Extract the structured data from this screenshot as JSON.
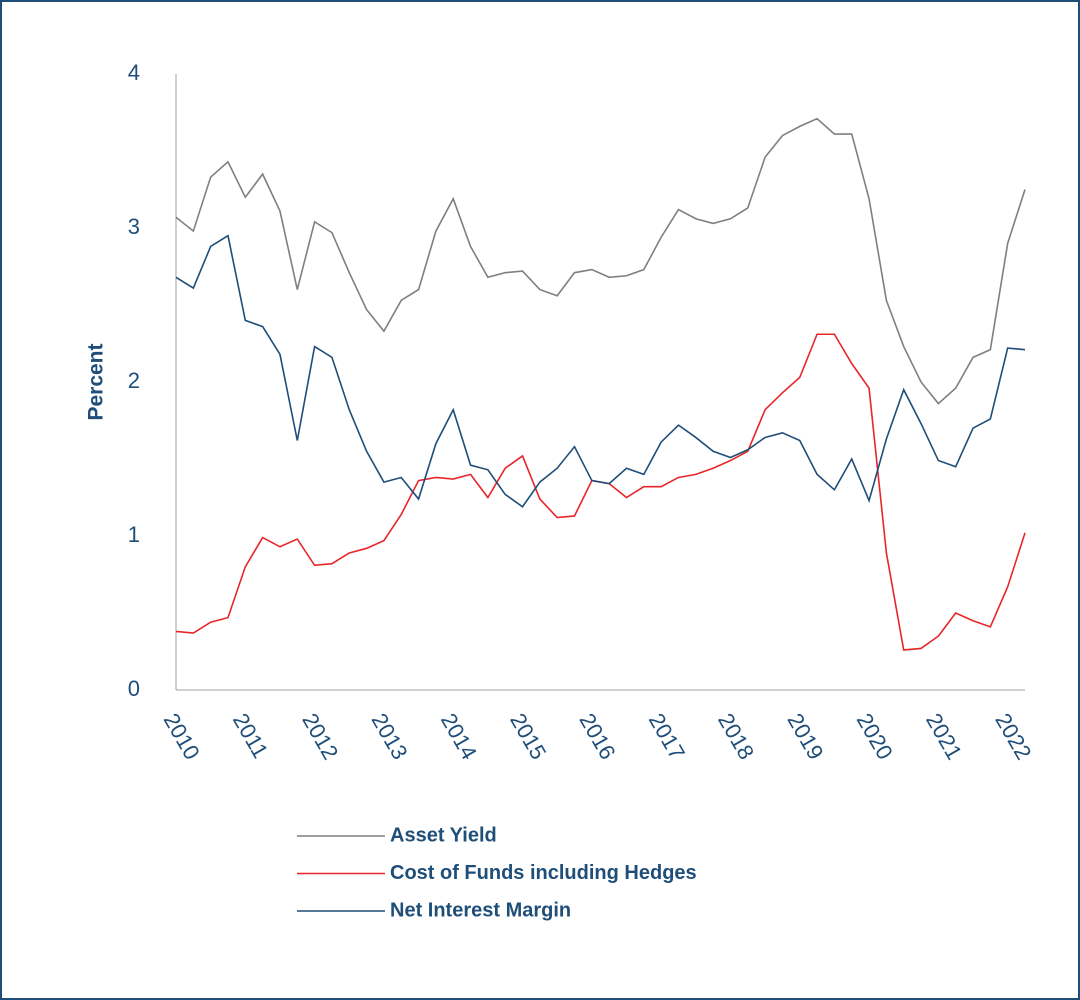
{
  "chart_data": {
    "type": "line",
    "ylabel": "Percent",
    "categories": [
      "2010",
      null,
      null,
      null,
      "2011",
      null,
      null,
      null,
      "2012",
      null,
      null,
      null,
      "2013",
      null,
      null,
      null,
      "2014",
      null,
      null,
      null,
      "2015",
      null,
      null,
      null,
      "2016",
      null,
      null,
      null,
      "2017",
      null,
      null,
      null,
      "2018",
      null,
      null,
      null,
      "2019",
      null,
      null,
      null,
      "2020",
      null,
      null,
      null,
      "2021",
      null,
      null,
      null,
      "2022",
      null
    ],
    "series": [
      {
        "name": "Asset Yield",
        "color": "#7f7f7f",
        "values": [
          3.07,
          2.98,
          3.33,
          3.43,
          3.2,
          3.35,
          3.11,
          2.6,
          3.04,
          2.97,
          2.71,
          2.47,
          2.33,
          2.53,
          2.6,
          2.98,
          3.19,
          2.88,
          2.68,
          2.71,
          2.72,
          2.6,
          2.56,
          2.71,
          2.73,
          2.68,
          2.69,
          2.73,
          2.94,
          3.12,
          3.06,
          3.03,
          3.06,
          3.13,
          3.46,
          3.6,
          3.66,
          3.71,
          3.61,
          3.61,
          3.19,
          2.53,
          2.23,
          2.0,
          1.86,
          1.96,
          2.16,
          2.21,
          2.9,
          3.25
        ]
      },
      {
        "name": "Cost of Funds including Hedges",
        "color": "#e8262a",
        "values": [
          0.38,
          0.37,
          0.44,
          0.47,
          0.8,
          0.99,
          0.93,
          0.98,
          0.81,
          0.82,
          0.89,
          0.92,
          0.97,
          1.14,
          1.36,
          1.38,
          1.37,
          1.4,
          1.25,
          1.44,
          1.52,
          1.24,
          1.12,
          1.13,
          1.36,
          1.34,
          1.25,
          1.32,
          1.32,
          1.38,
          1.4,
          1.44,
          1.49,
          1.55,
          1.82,
          1.93,
          2.03,
          2.31,
          2.31,
          2.12,
          1.96,
          0.89,
          0.26,
          0.27,
          0.35,
          0.5,
          0.45,
          0.41,
          0.67,
          1.02
        ]
      },
      {
        "name": "Net Interest Margin",
        "color": "#1f4e79",
        "values": [
          2.68,
          2.61,
          2.88,
          2.95,
          2.4,
          2.36,
          2.18,
          1.62,
          2.23,
          2.16,
          1.82,
          1.55,
          1.35,
          1.38,
          1.24,
          1.6,
          1.82,
          1.46,
          1.43,
          1.27,
          1.19,
          1.35,
          1.44,
          1.58,
          1.36,
          1.34,
          1.44,
          1.4,
          1.61,
          1.72,
          1.64,
          1.55,
          1.51,
          1.56,
          1.64,
          1.67,
          1.62,
          1.4,
          1.3,
          1.5,
          1.23,
          1.63,
          1.95,
          1.73,
          1.49,
          1.45,
          1.7,
          1.76,
          2.22,
          2.21
        ]
      }
    ],
    "ylim": [
      0,
      4
    ],
    "yticks": [
      0,
      1,
      2,
      3,
      4
    ],
    "grid": false
  }
}
